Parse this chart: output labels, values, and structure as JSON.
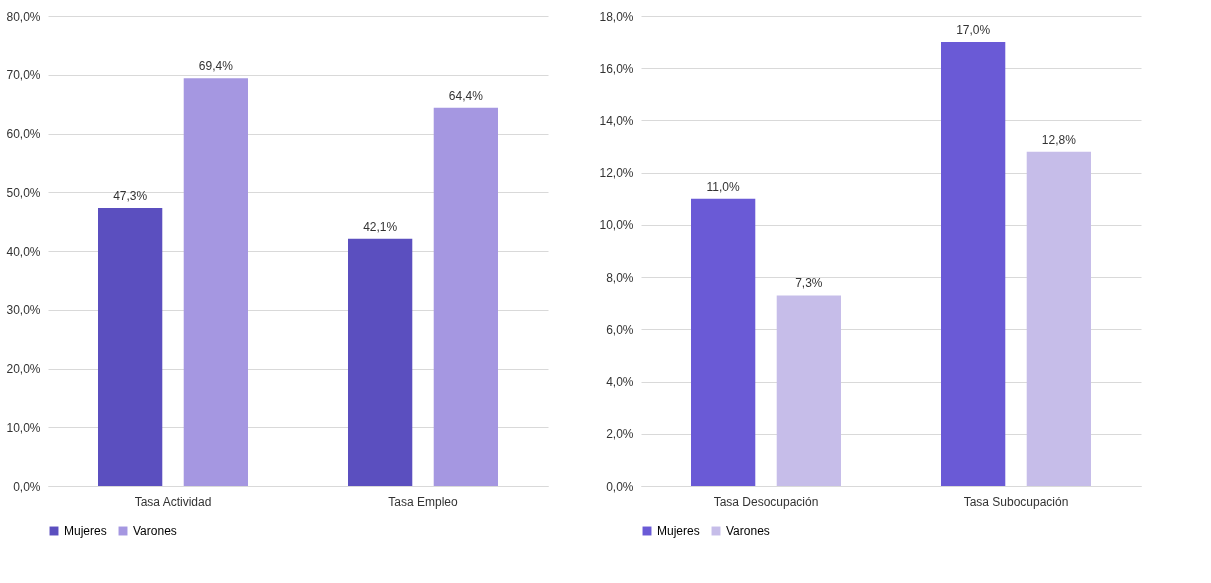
{
  "chart_data": [
    {
      "type": "bar",
      "categories": [
        "Tasa Actividad",
        "Tasa Empleo"
      ],
      "series": [
        {
          "name": "Mujeres",
          "color": "#5b4fbf",
          "values": [
            47.3,
            42.1
          ],
          "value_labels": [
            "47,3%",
            "42,1%"
          ]
        },
        {
          "name": "Varones",
          "color": "#a597e1",
          "values": [
            69.4,
            64.4
          ],
          "value_labels": [
            "69,4%",
            "64,4%"
          ]
        }
      ],
      "ylim": [
        0,
        80
      ],
      "yticks": [
        {
          "value": 0,
          "label": "0,0%"
        },
        {
          "value": 10,
          "label": "10,0%"
        },
        {
          "value": 20,
          "label": "20,0%"
        },
        {
          "value": 30,
          "label": "30,0%"
        },
        {
          "value": 40,
          "label": "40,0%"
        },
        {
          "value": 50,
          "label": "50,0%"
        },
        {
          "value": 60,
          "label": "60,0%"
        },
        {
          "value": 70,
          "label": "70,0%"
        },
        {
          "value": 80,
          "label": "80,0%"
        }
      ],
      "grid": "y",
      "legend": "bottom"
    },
    {
      "type": "bar",
      "categories": [
        "Tasa Desocupación",
        "Tasa Subocupación"
      ],
      "series": [
        {
          "name": "Mujeres",
          "color": "#6a5ad6",
          "values": [
            11.0,
            17.0
          ],
          "value_labels": [
            "11,0%",
            "17,0%"
          ]
        },
        {
          "name": "Varones",
          "color": "#c6bde9",
          "values": [
            7.3,
            12.8
          ],
          "value_labels": [
            "7,3%",
            "12,8%"
          ]
        }
      ],
      "ylim": [
        0,
        18
      ],
      "yticks": [
        {
          "value": 0,
          "label": "0,0%"
        },
        {
          "value": 2,
          "label": "2,0%"
        },
        {
          "value": 4,
          "label": "4,0%"
        },
        {
          "value": 6,
          "label": "6,0%"
        },
        {
          "value": 8,
          "label": "8,0%"
        },
        {
          "value": 10,
          "label": "10,0%"
        },
        {
          "value": 12,
          "label": "12,0%"
        },
        {
          "value": 14,
          "label": "14,0%"
        },
        {
          "value": 16,
          "label": "16,0%"
        },
        {
          "value": 18,
          "label": "18,0%"
        }
      ],
      "grid": "y",
      "legend": "bottom"
    }
  ]
}
